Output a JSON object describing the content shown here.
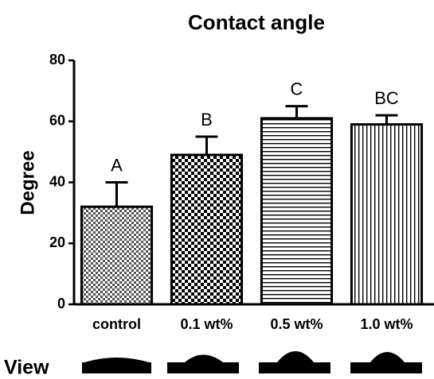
{
  "chart_data": {
    "type": "bar",
    "title": "Contact angle",
    "ylabel": "Degree",
    "categories": [
      "control",
      "0.1 wt%",
      "0.5 wt%",
      "1.0 wt%"
    ],
    "values": [
      32,
      49,
      61,
      59
    ],
    "errors": [
      8,
      6,
      4,
      3
    ],
    "annotations": [
      "A",
      "B",
      "C",
      "BC"
    ],
    "patterns": [
      "fine-checker",
      "checker",
      "horizontal-lines",
      "vertical-lines"
    ],
    "color": "#000000",
    "ylim": [
      0,
      80
    ],
    "yticks": [
      0,
      20,
      40,
      60,
      80
    ],
    "row_label": "View"
  }
}
